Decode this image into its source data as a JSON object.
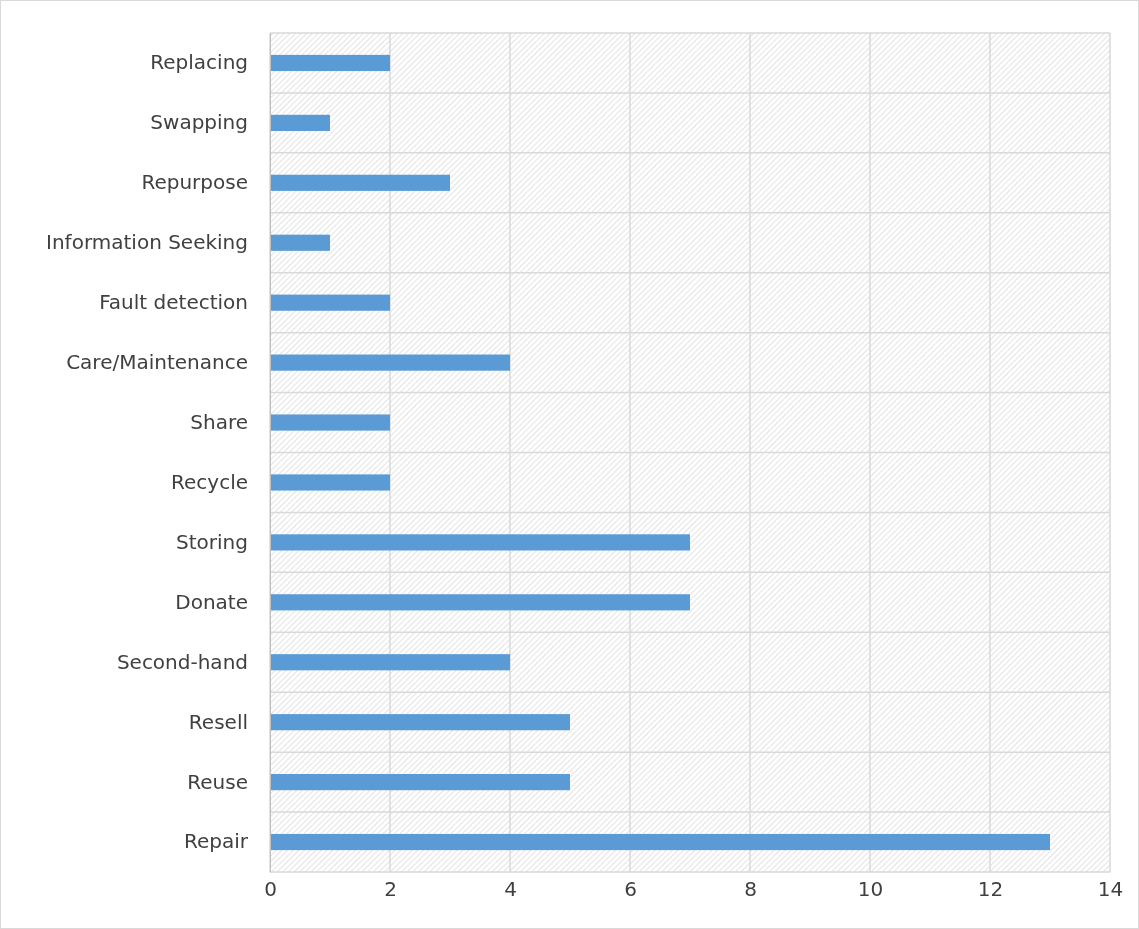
{
  "chart_data": {
    "type": "bar",
    "orientation": "horizontal",
    "categories": [
      "Replacing",
      "Swapping",
      "Repurpose",
      "Information Seeking",
      "Fault detection",
      "Care/Maintenance",
      "Share",
      "Recycle",
      "Storing",
      "Donate",
      "Second-hand",
      "Resell",
      "Reuse",
      "Repair"
    ],
    "values": [
      2,
      1,
      3,
      1,
      2,
      4,
      2,
      2,
      7,
      7,
      4,
      5,
      5,
      13
    ],
    "color": "#5b9bd5",
    "xlim": [
      0,
      14
    ],
    "xticks": [
      0,
      2,
      4,
      6,
      8,
      10,
      12,
      14
    ],
    "grid": true
  }
}
